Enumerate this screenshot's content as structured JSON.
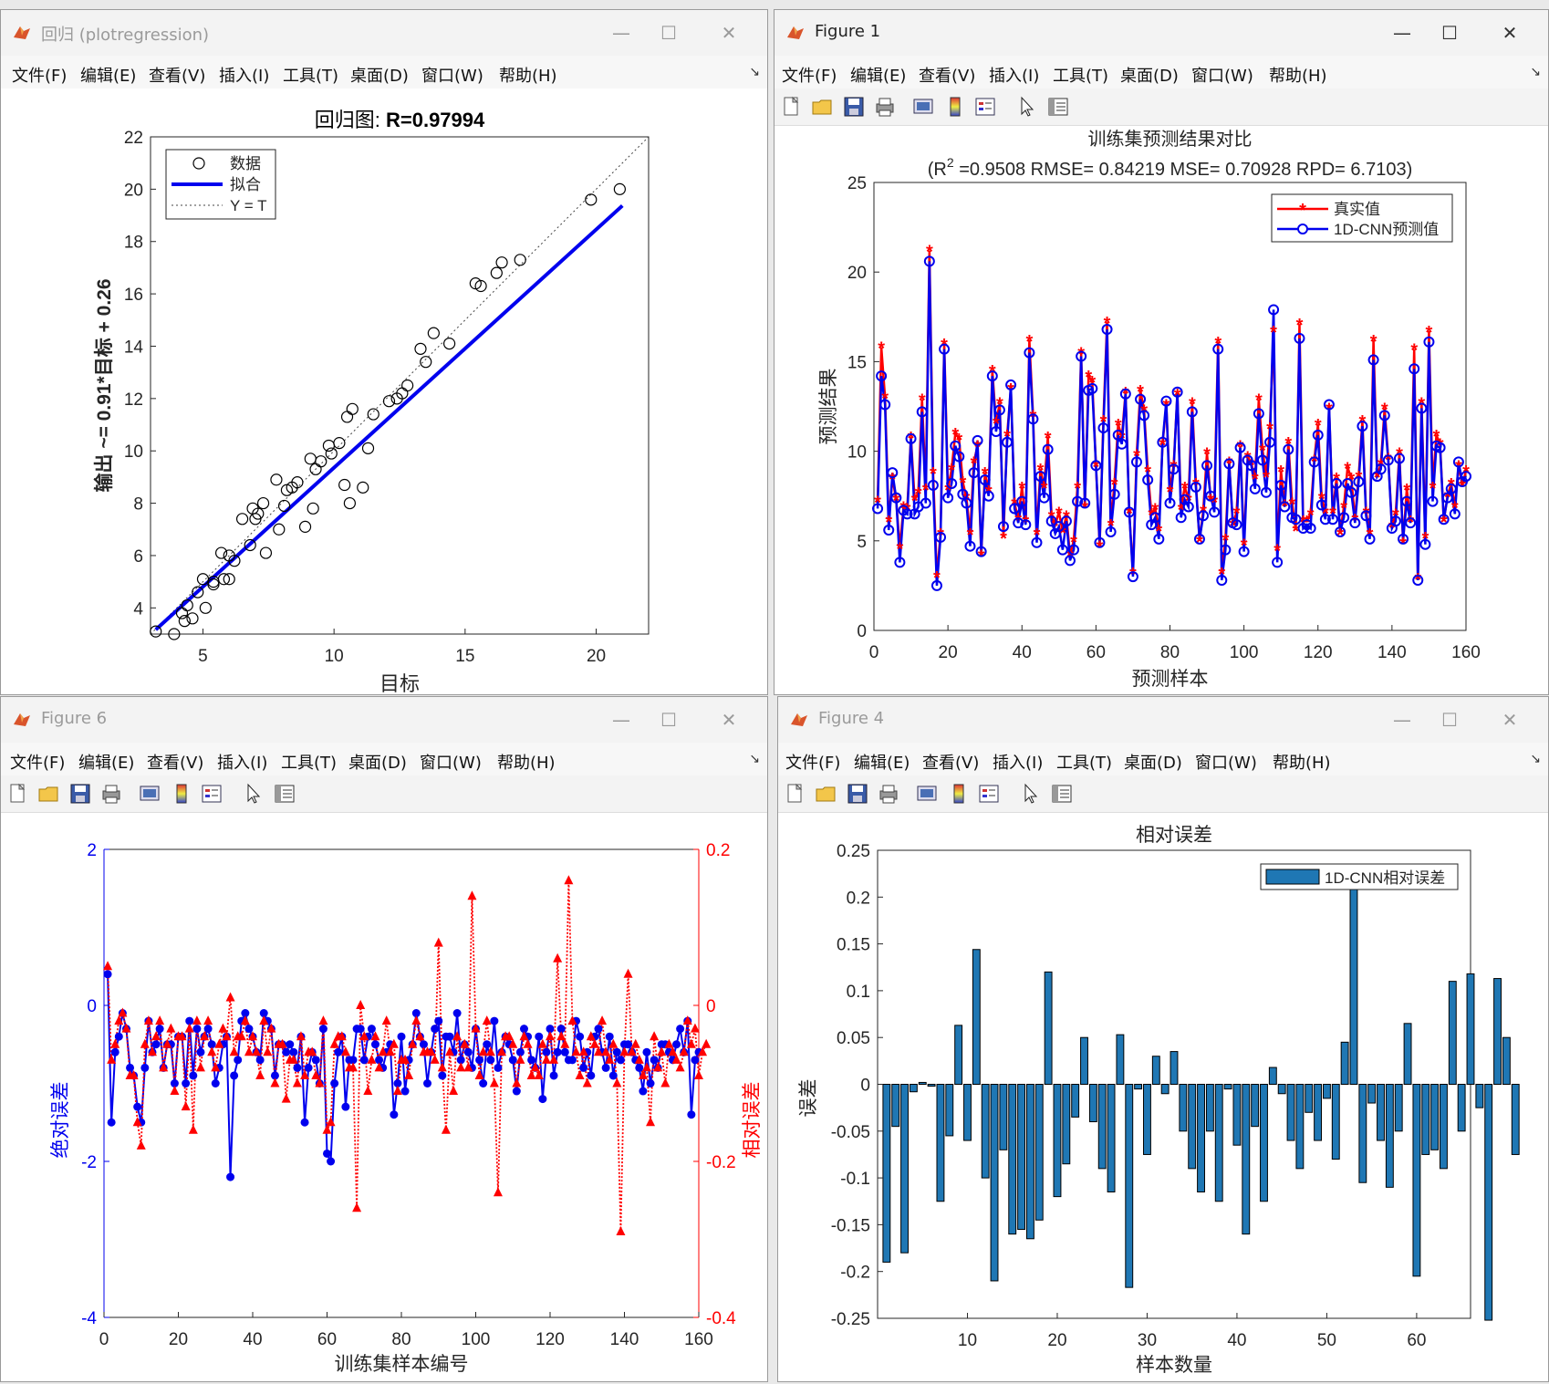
{
  "windows": {
    "reg": {
      "title": "回归 (plotregression)",
      "chart": {
        "title_label": "回归图: ",
        "title_value": "R=0.97994",
        "xlabel": "目标",
        "ylabel": "输出 ~= 0.91*目标 + 0.26",
        "legend": [
          "数据",
          "拟合",
          "Y = T"
        ],
        "xticks": [
          "5",
          "10",
          "15",
          "20"
        ],
        "yticks": [
          "4",
          "6",
          "8",
          "10",
          "12",
          "14",
          "16",
          "18",
          "20",
          "22"
        ]
      }
    },
    "fig1": {
      "title": "Figure 1",
      "chart": {
        "title1": "训练集预测结果对比",
        "title2a": "(R",
        "title2sup": "2",
        "title2b": " =0.9508 RMSE= 0.84219 MSE= 0.70928 RPD= 6.7103)",
        "xlabel": "预测样本",
        "ylabel": "预测结果",
        "legend": [
          "真实值",
          "1D-CNN预测值"
        ],
        "xticks": [
          "0",
          "20",
          "40",
          "60",
          "80",
          "100",
          "120",
          "140",
          "160"
        ],
        "yticks": [
          "0",
          "5",
          "10",
          "15",
          "20",
          "25"
        ]
      }
    },
    "fig6": {
      "title": "Figure 6",
      "chart": {
        "xlabel": "训练集样本编号",
        "ylabel_left": "绝对误差",
        "ylabel_right": "相对误差",
        "xticks": [
          "0",
          "20",
          "40",
          "60",
          "80",
          "100",
          "120",
          "140",
          "160"
        ],
        "yticks_left": [
          "2",
          "0",
          "-2",
          "-4"
        ],
        "yticks_right": [
          "0.2",
          "0",
          "-0.2",
          "-0.4"
        ]
      }
    },
    "fig4": {
      "title": "Figure 4",
      "chart": {
        "title": "相对误差",
        "xlabel": "样本数量",
        "ylabel": "误差",
        "legend": [
          "1D-CNN相对误差"
        ],
        "xticks": [
          "10",
          "20",
          "30",
          "40",
          "50",
          "60"
        ],
        "yticks": [
          "0.25",
          "0.2",
          "0.15",
          "0.1",
          "0.05",
          "0",
          "-0.05",
          "-0.1",
          "-0.15",
          "-0.2",
          "-0.25"
        ]
      }
    }
  },
  "menu": [
    "文件(F)",
    "编辑(E)",
    "查看(V)",
    "插入(I)",
    "工具(T)",
    "桌面(D)",
    "窗口(W)",
    "帮助(H)"
  ],
  "toolbar_icons": [
    "new-file-icon",
    "open-folder-icon",
    "save-icon",
    "print-icon",
    "link-plot-icon",
    "colorbar-icon",
    "legend-icon",
    "pointer-icon",
    "property-editor-icon"
  ],
  "colors": {
    "series_red": "#ff0000",
    "series_blue": "#0000ee",
    "bar_fill": "#1f77b4",
    "fit_line": "#0000ee"
  },
  "chart_data": [
    {
      "id": "regression",
      "type": "scatter",
      "xlim": [
        3,
        22
      ],
      "ylim": [
        3,
        22
      ],
      "points": [
        [
          3.2,
          3.1
        ],
        [
          3.9,
          3.0
        ],
        [
          4.2,
          3.8
        ],
        [
          4.4,
          4.1
        ],
        [
          4.6,
          3.6
        ],
        [
          4.3,
          3.5
        ],
        [
          4.8,
          4.6
        ],
        [
          5.1,
          4.0
        ],
        [
          5.0,
          5.1
        ],
        [
          5.4,
          5.0
        ],
        [
          5.4,
          4.9
        ],
        [
          5.8,
          5.1
        ],
        [
          5.7,
          6.1
        ],
        [
          6.0,
          5.1
        ],
        [
          6.2,
          5.8
        ],
        [
          6.0,
          6.0
        ],
        [
          6.5,
          7.4
        ],
        [
          6.8,
          6.4
        ],
        [
          6.9,
          7.8
        ],
        [
          7.0,
          7.4
        ],
        [
          7.1,
          7.6
        ],
        [
          7.3,
          8.0
        ],
        [
          7.4,
          6.1
        ],
        [
          7.8,
          8.9
        ],
        [
          7.9,
          7.0
        ],
        [
          8.1,
          7.9
        ],
        [
          8.2,
          8.5
        ],
        [
          8.4,
          8.6
        ],
        [
          8.6,
          8.8
        ],
        [
          8.9,
          7.1
        ],
        [
          9.1,
          9.7
        ],
        [
          9.2,
          7.8
        ],
        [
          9.3,
          9.3
        ],
        [
          9.5,
          9.6
        ],
        [
          9.8,
          10.2
        ],
        [
          9.9,
          9.9
        ],
        [
          10.2,
          10.3
        ],
        [
          10.4,
          8.7
        ],
        [
          10.5,
          11.3
        ],
        [
          10.6,
          8.0
        ],
        [
          10.7,
          11.6
        ],
        [
          11.1,
          8.6
        ],
        [
          11.3,
          10.1
        ],
        [
          11.5,
          11.4
        ],
        [
          12.1,
          11.9
        ],
        [
          12.4,
          12.0
        ],
        [
          12.6,
          12.2
        ],
        [
          12.8,
          12.5
        ],
        [
          13.3,
          13.9
        ],
        [
          13.5,
          13.4
        ],
        [
          13.8,
          14.5
        ],
        [
          14.4,
          14.1
        ],
        [
          15.4,
          16.4
        ],
        [
          15.6,
          16.3
        ],
        [
          16.2,
          16.8
        ],
        [
          16.4,
          17.2
        ],
        [
          17.1,
          17.3
        ],
        [
          19.8,
          19.6
        ],
        [
          20.9,
          20.0
        ]
      ],
      "fit": [
        [
          3.2,
          3.17
        ],
        [
          21,
          19.37
        ]
      ],
      "diagonal": [
        [
          3,
          3
        ],
        [
          22,
          22
        ]
      ]
    },
    {
      "id": "train_compare",
      "type": "line",
      "xlim": [
        0,
        160
      ],
      "ylim": [
        0,
        25
      ],
      "actual": [
        7.2,
        15.8,
        13,
        6.1,
        8.5,
        7.3,
        4.6,
        6.9,
        6.8,
        10.8,
        7.3,
        7.7,
        12.9,
        7.9,
        21.2,
        8.8,
        3,
        5.4,
        16,
        7.9,
        9,
        11,
        10.7,
        8.3,
        7.4,
        5.4,
        9.4,
        10.3,
        4.2,
        8.8,
        7.8,
        14.5,
        11.6,
        12.7,
        5.2,
        10.9,
        13.5,
        7.1,
        6.2,
        8,
        6.1,
        16.2,
        12,
        5.4,
        9,
        8,
        10.8,
        6.4,
        5.9,
        6.6,
        5.5,
        6.4,
        4.2,
        5,
        8,
        15.5,
        6.9,
        14.2,
        13.9,
        9.2,
        4.7,
        11.7,
        17.2,
        5.9,
        8.2,
        11.5,
        10.8,
        13.3,
        6.6,
        3.2,
        9.8,
        13.4,
        12.3,
        8.9,
        6.5,
        6.8,
        5.6,
        10.4,
        12.6,
        7.8,
        9.2,
        13.2,
        6.8,
        8,
        7.3,
        12.7,
        8.2,
        5,
        6.7,
        9.9,
        7.3,
        7.2,
        16.1,
        3.2,
        5.1,
        9.4,
        5.9,
        6.6,
        10.3,
        4.8,
        9.7,
        9.3,
        8.5,
        12.9,
        10.1,
        8.6,
        11.3,
        16.7,
        4.5,
        8.9,
        7,
        10.5,
        7.1,
        5.6,
        17.1,
        6.1,
        6.1,
        6.5,
        9.5,
        11.5,
        7.4,
        6.6,
        12.4,
        6.6,
        8.5,
        5.4,
        6.9,
        9.1,
        8.5,
        6.2,
        8.6,
        11.7,
        6.6,
        5.4,
        16.2,
        8.6,
        9.3,
        12.4,
        9.6,
        5.8,
        6.5,
        9.9,
        4.9,
        7.9,
        6.1,
        15.7,
        2.9,
        12.7,
        5.2,
        16.7,
        8,
        10.9,
        10.4,
        6.1,
        7.5,
        8.2,
        6.9,
        9.2,
        8.1,
        8.9
      ],
      "predicted": [
        6.8,
        14.2,
        12.6,
        5.6,
        8.8,
        7.4,
        3.8,
        6.7,
        6.5,
        10.7,
        6.5,
        6.9,
        12.2,
        7.1,
        20.6,
        8.1,
        2.5,
        5.2,
        15.7,
        7.4,
        8.2,
        10.3,
        9.7,
        7.6,
        7.1,
        4.7,
        8.8,
        10.6,
        4.4,
        8.4,
        7.5,
        14.2,
        11.1,
        12.3,
        5.8,
        10.5,
        13.7,
        6.8,
        6,
        7.2,
        5.9,
        15.5,
        11.8,
        4.9,
        8.6,
        7.4,
        10.1,
        6.1,
        5.4,
        5.8,
        4.5,
        6.1,
        3.9,
        4.5,
        7.2,
        15.3,
        7.1,
        13.4,
        13.5,
        9.2,
        4.9,
        11.3,
        16.8,
        5.5,
        7.6,
        10.9,
        10.4,
        13.2,
        6.6,
        3,
        9.4,
        12.9,
        12,
        8.4,
        5.9,
        6.3,
        5.1,
        10.5,
        12.8,
        7.1,
        9,
        13.3,
        6.3,
        7.3,
        6.9,
        12.2,
        8,
        5.1,
        6.4,
        9.2,
        7.5,
        6.6,
        15.7,
        2.8,
        4.5,
        9.3,
        6,
        5.9,
        10.2,
        4.4,
        9.5,
        9.2,
        7.9,
        12.1,
        9.5,
        7.7,
        10.5,
        17.9,
        3.8,
        8.1,
        6.9,
        10.1,
        6.3,
        6.2,
        16.3,
        5.7,
        5.9,
        5.7,
        9.4,
        10.9,
        7,
        6.2,
        12.6,
        6.2,
        8.2,
        5.5,
        6.3,
        8.2,
        7.7,
        6,
        8.3,
        11.4,
        6.4,
        5.1,
        15.1,
        8.6,
        9,
        12,
        9.5,
        5.7,
        6.1,
        9.6,
        5.1,
        7.2,
        6,
        14.6,
        2.8,
        12.4,
        4.8,
        16.1,
        7.2,
        10.3,
        10.2,
        6.2,
        7.4,
        7.9,
        6.5,
        9.4,
        8.3,
        8.6
      ]
    },
    {
      "id": "errors",
      "type": "line",
      "xlim": [
        0,
        160
      ],
      "ylim_left": [
        -4,
        2
      ],
      "ylim_right": [
        -0.4,
        0.2
      ],
      "absolute_error": [
        0.4,
        -1.5,
        -0.6,
        -0.4,
        -0.1,
        -0.3,
        -0.8,
        -0.9,
        -1.3,
        -1.5,
        -0.8,
        -0.2,
        -0.6,
        -0.5,
        -0.3,
        -0.8,
        -0.5,
        -0.5,
        -1.0,
        -0.4,
        -0.4,
        -1.0,
        -0.2,
        -0.9,
        -0.3,
        -0.6,
        -0.4,
        -0.3,
        -0.5,
        -1.0,
        -0.8,
        -0.5,
        -0.4,
        -2.2,
        -0.9,
        -0.7,
        -0.2,
        -0.1,
        -0.3,
        -0.4,
        -0.6,
        -0.7,
        -0.1,
        -0.2,
        -0.3,
        -0.9,
        -0.5,
        -0.5,
        -0.6,
        -0.5,
        -0.6,
        -0.8,
        -0.4,
        -1.5,
        -0.8,
        -0.6,
        -0.7,
        -1.0,
        -0.3,
        -1.9,
        -2.0,
        -1.0,
        -0.6,
        -0.4,
        -1.3,
        -0.7,
        -0.7,
        -0.3,
        -0.3,
        -0.7,
        -0.4,
        -0.3,
        -0.5,
        -0.7,
        -0.8,
        -0.6,
        -0.5,
        -1.4,
        -1.0,
        -0.4,
        -1.1,
        -0.7,
        -0.5,
        -0.1,
        -0.4,
        -0.5,
        -1.0,
        -0.6,
        -0.3,
        -0.2,
        -0.9,
        -0.4,
        -0.4,
        -0.6,
        -0.1,
        -0.7,
        -0.5,
        -0.6,
        -0.8,
        -0.3,
        -0.7,
        -1.0,
        -0.5,
        -0.7,
        -0.2,
        -0.8,
        -0.6,
        -0.4,
        -0.5,
        -0.7,
        -1.1,
        -0.6,
        -0.3,
        -0.4,
        -0.7,
        -0.8,
        -0.4,
        -1.2,
        -0.6,
        -0.3,
        -0.9,
        -0.6,
        -0.3,
        -0.6,
        -0.7,
        -0.7,
        -0.2,
        -0.4,
        -0.8,
        -0.6,
        -0.9,
        -0.4,
        -0.3,
        -0.6,
        -0.8,
        -0.4,
        -0.9,
        -0.6,
        -0.7,
        -0.5,
        -0.5,
        -0.6,
        -0.7,
        -0.8,
        -1.1,
        -0.6,
        -1.0,
        -0.7,
        -0.8,
        -0.5,
        -0.5,
        -0.6,
        -0.7,
        -0.5,
        -0.3,
        -0.6,
        -0.2,
        -1.4,
        -0.7,
        -0.6
      ],
      "relative_error": [
        0.05,
        -0.07,
        -0.05,
        -0.02,
        -0.01,
        -0.03,
        -0.09,
        -0.09,
        -0.15,
        -0.18,
        -0.05,
        -0.02,
        -0.06,
        -0.04,
        -0.02,
        -0.08,
        -0.05,
        -0.03,
        -0.11,
        -0.04,
        -0.04,
        -0.13,
        -0.03,
        -0.16,
        -0.02,
        -0.08,
        -0.04,
        -0.02,
        -0.06,
        -0.08,
        -0.05,
        -0.03,
        -0.04,
        0.01,
        -0.06,
        -0.04,
        -0.04,
        -0.02,
        -0.06,
        -0.04,
        -0.06,
        -0.09,
        -0.02,
        -0.06,
        -0.03,
        -0.1,
        -0.05,
        -0.05,
        -0.12,
        -0.07,
        -0.07,
        -0.1,
        -0.04,
        -0.09,
        -0.06,
        -0.06,
        -0.09,
        -0.1,
        -0.02,
        -0.16,
        -0.15,
        -0.05,
        -0.04,
        -0.04,
        -0.06,
        -0.08,
        -0.08,
        -0.26,
        0.0,
        -0.04,
        -0.11,
        -0.07,
        -0.04,
        -0.08,
        -0.06,
        -0.02,
        -0.06,
        -0.05,
        -0.11,
        -0.07,
        -0.07,
        -0.09,
        -0.05,
        -0.02,
        -0.04,
        -0.06,
        -0.06,
        -0.06,
        -0.07,
        0.08,
        -0.08,
        -0.16,
        -0.06,
        -0.11,
        -0.04,
        -0.08,
        -0.05,
        -0.08,
        0.14,
        -0.03,
        -0.09,
        -0.06,
        -0.02,
        -0.06,
        -0.1,
        -0.24,
        -0.06,
        -0.04,
        -0.04,
        -0.05,
        -0.1,
        -0.07,
        -0.04,
        -0.05,
        -0.09,
        -0.08,
        -0.09,
        -0.05,
        -0.07,
        -0.04,
        -0.07,
        0.06,
        -0.04,
        -0.05,
        0.16,
        -0.02,
        -0.06,
        -0.09,
        -0.06,
        -0.1,
        -0.04,
        -0.05,
        -0.06,
        -0.02,
        -0.06,
        -0.07,
        -0.05,
        -0.1,
        -0.29,
        -0.06,
        0.04,
        -0.06,
        -0.05,
        -0.07,
        -0.09,
        -0.08,
        -0.15,
        -0.04,
        -0.08,
        -0.06,
        -0.1,
        -0.05,
        -0.06,
        -0.07,
        -0.08,
        -0.06,
        -0.02,
        -0.05,
        -0.03,
        -0.09,
        -0.06,
        -0.05
      ]
    },
    {
      "id": "relative_error_bars",
      "type": "bar",
      "xlim": [
        0,
        66
      ],
      "ylim": [
        -0.25,
        0.25
      ],
      "values": [
        -0.19,
        -0.045,
        -0.18,
        -0.008,
        0.002,
        -0.002,
        -0.125,
        -0.055,
        0.063,
        -0.06,
        0.144,
        -0.1,
        -0.21,
        -0.07,
        -0.16,
        -0.155,
        -0.165,
        -0.145,
        0.12,
        -0.12,
        -0.085,
        -0.035,
        0.05,
        -0.04,
        -0.09,
        -0.115,
        0.053,
        -0.217,
        -0.005,
        -0.075,
        0.03,
        -0.01,
        0.035,
        -0.05,
        -0.09,
        -0.115,
        -0.05,
        -0.125,
        -0.005,
        -0.065,
        -0.16,
        -0.045,
        -0.125,
        0.018,
        -0.01,
        -0.06,
        -0.09,
        -0.03,
        -0.06,
        -0.015,
        -0.08,
        0.045,
        0.21,
        -0.105,
        -0.02,
        -0.06,
        -0.11,
        -0.05,
        0.065,
        -0.205,
        -0.075,
        -0.07,
        -0.09,
        0.11,
        -0.05,
        0.118,
        -0.025,
        -0.252,
        0.113,
        0.05,
        -0.075
      ]
    }
  ]
}
